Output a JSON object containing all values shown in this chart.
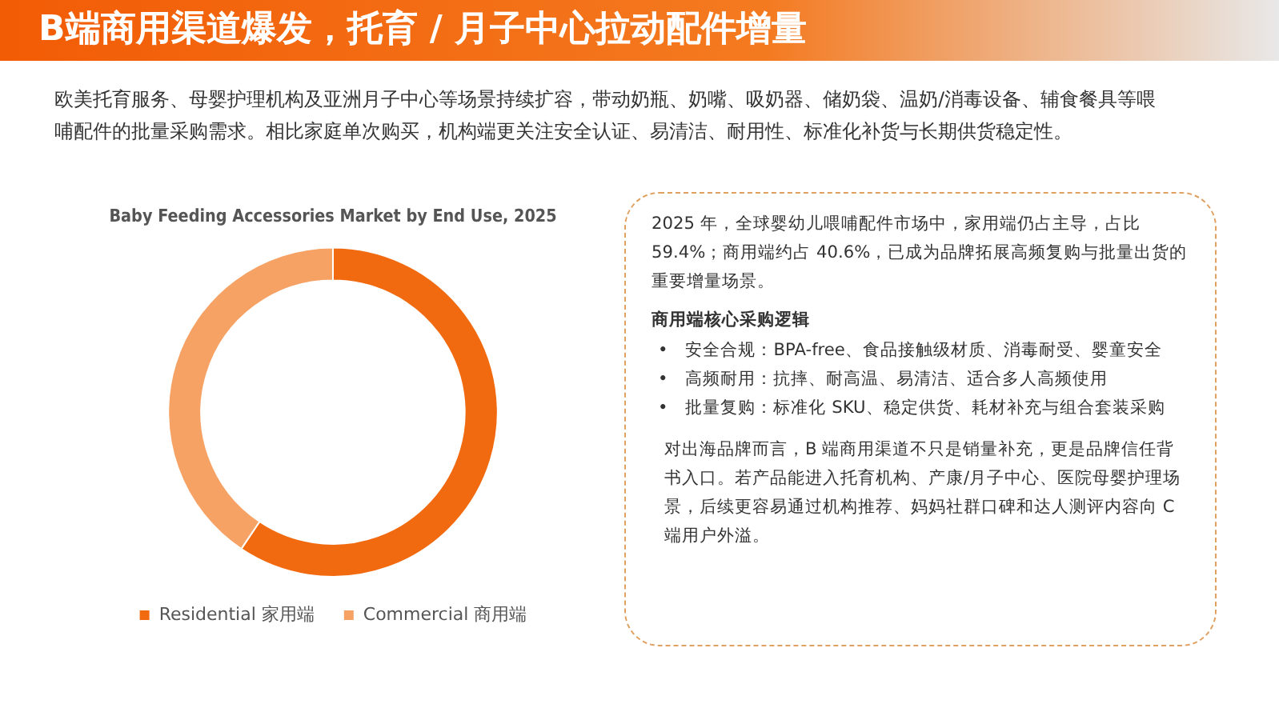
{
  "chart_data": [
    {
      "type": "other",
      "title": "B端商用渠道爆发，托育 / 月子中心拉动配件增量",
      "subtitle": "欧美托育服务、母婴护理机构及亚洲月子中心等场景持续扩容，带动奶瓶、奶嘴、吸奶器、储奶袋、温奶/消毒设备、辅食餐具等喂哺配件的批量采购需求。相比家庭单次购买，机构端更关注安全认证、易清洁、耐用性、标准化补货与长期供货稳定性。"
    },
    {
      "type": "donut",
      "title": "Baby Feeding Accessories Market by End Use, 2025",
      "categories": [
        "Residential 家用端",
        "Commercial 商用端"
      ],
      "values": [
        59.4,
        40.6
      ],
      "colors": [
        "#f26a10",
        "#f7a265"
      ],
      "legend": "bottom"
    },
    {
      "type": "other",
      "subtitle": "商用端核心采购逻辑",
      "annotations": [
        "2025 年，全球婴幼儿喂哺配件市场中，家用端仍占主导，占比 59.4%；商用端约占 40.6%，已成为品牌拓展高频复购与批量出货的重要增量场景。",
        "•　安全合规：BPA-free、食品接触级材质、消毒耐受、婴童安全",
        "•　高频耐用：抗摔、耐高温、易清洁、适合多人高频使用",
        "•　批量复购：标准化 SKU、稳定供货、耗材补充与组合套装采购",
        "对出海品牌而言，B 端商用渠道不只是销量补充，更是品牌信任背书入口。若产品能进入托育机构、产康/月子中心、医院母婴护理场景，后续更容易通过机构推荐、妈妈社群口碑和达人测评内容向 C 端用户外溢。"
      ]
    }
  ]
}
